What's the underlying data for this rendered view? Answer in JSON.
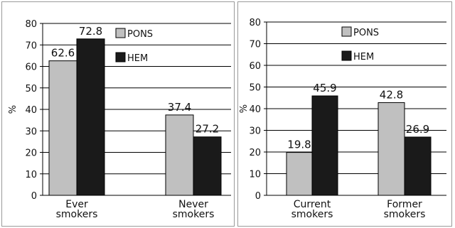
{
  "chart_data": [
    {
      "type": "bar",
      "title": "",
      "xlabel": "",
      "ylabel": "%",
      "ylim": [
        0,
        80
      ],
      "yticks": [
        0,
        10,
        20,
        30,
        40,
        50,
        60,
        70,
        80
      ],
      "grid": true,
      "legend": "top-right",
      "categories": [
        [
          "Ever",
          "smokers"
        ],
        [
          "Never",
          "smokers"
        ]
      ],
      "series": [
        {
          "name": "PONS",
          "color": "#c0c0c0",
          "values": [
            62.6,
            37.4
          ],
          "labels": [
            "62.6",
            "37.4"
          ]
        },
        {
          "name": "HEM",
          "color": "#1a1a1a",
          "values": [
            72.8,
            27.2
          ],
          "labels": [
            "72.8",
            "27.2"
          ]
        }
      ]
    },
    {
      "type": "bar",
      "title": "",
      "xlabel": "",
      "ylabel": "%",
      "ylim": [
        0,
        80
      ],
      "yticks": [
        0,
        10,
        20,
        30,
        40,
        50,
        60,
        70,
        80
      ],
      "grid": true,
      "legend": "top-right",
      "categories": [
        [
          "Current",
          "smokers"
        ],
        [
          "Former",
          "smokers"
        ]
      ],
      "series": [
        {
          "name": "PONS",
          "color": "#c0c0c0",
          "values": [
            19.8,
            42.8
          ],
          "labels": [
            "19.8",
            "42.8"
          ]
        },
        {
          "name": "HEM",
          "color": "#1a1a1a",
          "values": [
            45.9,
            26.9
          ],
          "labels": [
            "45.9",
            "26.9"
          ]
        }
      ]
    }
  ]
}
